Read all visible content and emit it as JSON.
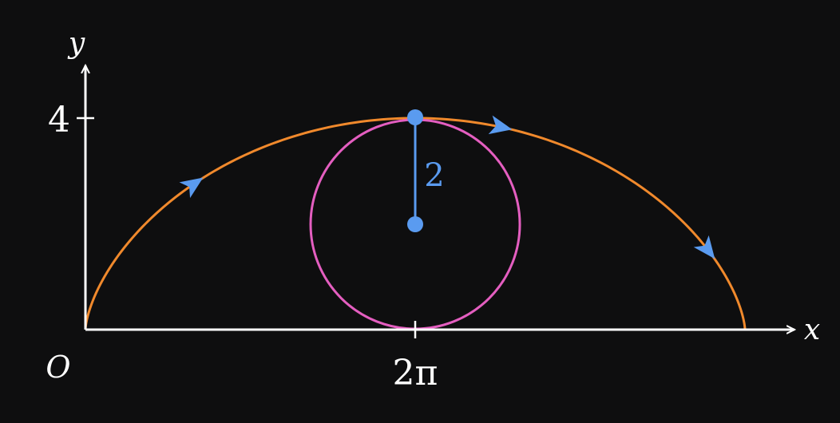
{
  "diagram": {
    "labels": {
      "x_axis": "x",
      "y_axis": "y",
      "origin": "O",
      "y_tick": "4",
      "x_tick": "2π",
      "radius": "2"
    },
    "colors": {
      "background": "#0e0e0f",
      "axes": "#ffffff",
      "curve": "#f0892c",
      "circle": "#e45ec0",
      "radius_and_arrows": "#5a9bf0"
    },
    "curve_shape": "cycloid",
    "circle_radius": 2,
    "cycloid_span": "4π",
    "cycloid_max_height": 4
  }
}
